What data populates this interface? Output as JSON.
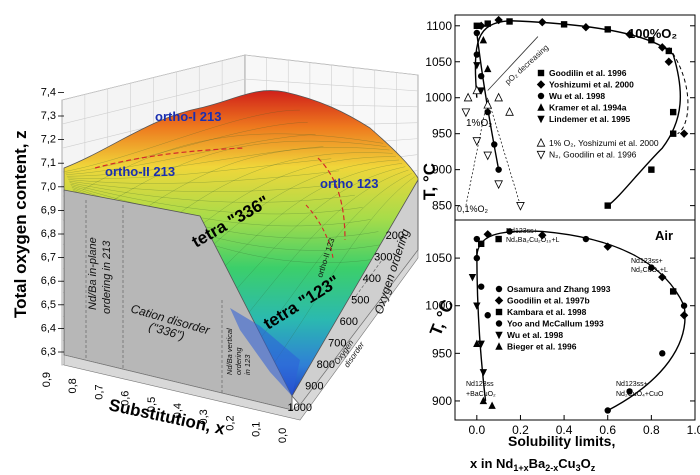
{
  "figure3d": {
    "zlabel": "Total oxygen content, z",
    "xlabel": "Substitution, x",
    "tlabel": "T, °C",
    "z_ticks": [
      "6,3",
      "6,4",
      "6,5",
      "6,6",
      "6,7",
      "6,8",
      "6,9",
      "7,0",
      "7,1",
      "7,2",
      "7,3",
      "7,4"
    ],
    "x_ticks": [
      "0,9",
      "0,8",
      "0,7",
      "0,6",
      "0,5",
      "0,4",
      "0,3",
      "0,2",
      "0,1",
      "0,0"
    ],
    "t_ticks": [
      "200",
      "300",
      "400",
      "500",
      "600",
      "700",
      "800",
      "900",
      "1000"
    ],
    "regions": {
      "ortho1": "ortho-I 213",
      "ortho2": "ortho-II 213",
      "ortho123": "ortho 123",
      "tetra336": "tetra \"336\"",
      "tetra123": "tetra \"123\"",
      "orthoII123": "ortho-II 123"
    },
    "wall": {
      "inplane": "Nd/Ba in-plane ordering in 213",
      "cation1": "Cation disorder",
      "cation2": "(\"336\")",
      "vertical": "Nd/Ba vertical ordering in 123",
      "oxydis": "Oxygen disorder",
      "oxyord": "Oxygen ordering"
    }
  },
  "top_chart": {
    "ylabel": "T, °C",
    "title": "100%O₂",
    "annotation_o2": "pO₂ decreasing",
    "label_1pct": "1%O₂",
    "label_01pct": "0,1%O₂",
    "legend": [
      {
        "marker": "square",
        "text": "Goodilin et al. 1996"
      },
      {
        "marker": "diamond",
        "text": "Yoshizumi et al. 2000"
      },
      {
        "marker": "circle",
        "text": "Wu et al. 1998"
      },
      {
        "marker": "triangle-up",
        "text": "Kramer et al. 1994a"
      },
      {
        "marker": "triangle-down",
        "text": "Lindemer et al. 1995"
      }
    ],
    "legend2": [
      {
        "marker": "triangle-up-open",
        "text": "1% O₂, Yoshizumi et al. 2000"
      },
      {
        "marker": "triangle-down-open",
        "text": "N₂, Goodilin et al. 1996"
      }
    ]
  },
  "bottom_chart": {
    "title": "Air",
    "xlabel": "Solubility limits,",
    "xlabel2": "x in Nd₁₊ₓBa₂₋ₓCu₃O_z",
    "legend": [
      {
        "marker": "circle",
        "text": "Osamura and Zhang 1993"
      },
      {
        "marker": "diamond",
        "text": "Goodilin et al. 1997b"
      },
      {
        "marker": "square",
        "text": "Kambara et al. 1998"
      },
      {
        "marker": "circle",
        "text": "Yoo and McCallum 1993"
      },
      {
        "marker": "triangle-down",
        "text": "Wu et al. 1998"
      },
      {
        "marker": "triangle-up",
        "text": "Bieger et al. 1996"
      }
    ],
    "phase_labels": {
      "top_left": "Nd123ss+ Nd₄Ba₂Cu₂O₁₀+L",
      "top_right": "Nd123ss+ Nd₂CuO₄+L",
      "bot_left": "Nd123ss +BaCuO₂",
      "bot_right": "Nd123ss+ Nd₂CuO₄+CuO"
    }
  },
  "chart_data": [
    {
      "type": "scatter",
      "title": "100%O₂",
      "ylabel": "T, °C",
      "ylim": [
        830,
        1115
      ],
      "xlim": [
        -0.1,
        1.0
      ],
      "y_ticks": [
        850,
        900,
        950,
        1000,
        1050,
        1100
      ],
      "series": [
        {
          "name": "Goodilin et al. 1996",
          "points": [
            [
              0.0,
              1100
            ],
            [
              0.05,
              1103
            ],
            [
              0.15,
              1106
            ],
            [
              0.4,
              1102
            ],
            [
              0.6,
              1095
            ],
            [
              0.8,
              1080
            ],
            [
              0.88,
              1065
            ],
            [
              0.9,
              980
            ],
            [
              0.9,
              950
            ],
            [
              0.8,
              900
            ],
            [
              0.6,
              850
            ]
          ]
        },
        {
          "name": "Yoshizumi et al. 2000",
          "points": [
            [
              0.02,
              1100
            ],
            [
              0.1,
              1108
            ],
            [
              0.3,
              1105
            ],
            [
              0.5,
              1098
            ],
            [
              0.7,
              1088
            ],
            [
              0.85,
              1070
            ],
            [
              0.88,
              1050
            ],
            [
              0.95,
              950
            ]
          ]
        },
        {
          "name": "Wu et al. 1998",
          "points": [
            [
              0.0,
              1090
            ],
            [
              0.0,
              1060
            ],
            [
              0.02,
              1030
            ],
            [
              0.05,
              980
            ],
            [
              0.08,
              935
            ],
            [
              0.1,
              900
            ]
          ]
        },
        {
          "name": "Kramer et al. 1994a",
          "points": [
            [
              0.03,
              1080
            ],
            [
              0.05,
              1040
            ]
          ]
        },
        {
          "name": "Lindemer et al. 1995",
          "points": [
            [
              0.0,
              1045
            ],
            [
              0.02,
              1010
            ]
          ]
        },
        {
          "name": "1% O₂, Yoshizumi et al. 2000",
          "points": [
            [
              -0.04,
              1000
            ],
            [
              0.0,
              1010
            ],
            [
              0.05,
              990
            ],
            [
              0.1,
              1000
            ],
            [
              0.15,
              980
            ]
          ]
        },
        {
          "name": "N₂, Goodilin et al. 1996",
          "points": [
            [
              -0.05,
              980
            ],
            [
              0.0,
              940
            ],
            [
              0.05,
              920
            ],
            [
              0.1,
              880
            ],
            [
              0.2,
              850
            ]
          ]
        }
      ]
    },
    {
      "type": "scatter",
      "title": "Air",
      "xlabel": "Solubility limits,",
      "xlim": [
        -0.1,
        1.0
      ],
      "ylim": [
        880,
        1090
      ],
      "x_ticks": [
        0.0,
        0.2,
        0.4,
        0.6,
        0.8,
        1.0
      ],
      "y_ticks": [
        900,
        950,
        1000,
        1050
      ],
      "series": [
        {
          "name": "Osamura and Zhang 1993",
          "points": [
            [
              0.0,
              1070
            ],
            [
              0.15,
              1078
            ],
            [
              0.5,
              1070
            ],
            [
              0.8,
              1040
            ],
            [
              0.95,
              1000
            ],
            [
              0.85,
              950
            ],
            [
              0.7,
              910
            ],
            [
              0.6,
              890
            ]
          ]
        },
        {
          "name": "Goodilin et al. 1997b",
          "points": [
            [
              0.05,
              1075
            ],
            [
              0.3,
              1074
            ],
            [
              0.6,
              1062
            ],
            [
              0.85,
              1030
            ],
            [
              0.95,
              990
            ]
          ]
        },
        {
          "name": "Kambara et al. 1998",
          "points": [
            [
              0.02,
              1065
            ],
            [
              0.1,
              1070
            ],
            [
              0.9,
              1015
            ]
          ]
        },
        {
          "name": "Yoo and McCallum 1993",
          "points": [
            [
              0.0,
              1050
            ],
            [
              0.02,
              1020
            ],
            [
              0.05,
              990
            ]
          ]
        },
        {
          "name": "Wu et al. 1998",
          "points": [
            [
              -0.02,
              1030
            ],
            [
              0.0,
              1000
            ],
            [
              0.02,
              960
            ],
            [
              0.03,
              930
            ]
          ]
        },
        {
          "name": "Bieger et al. 1996",
          "points": [
            [
              0.0,
              960
            ],
            [
              0.03,
              900
            ],
            [
              0.07,
              895
            ]
          ]
        }
      ]
    }
  ]
}
